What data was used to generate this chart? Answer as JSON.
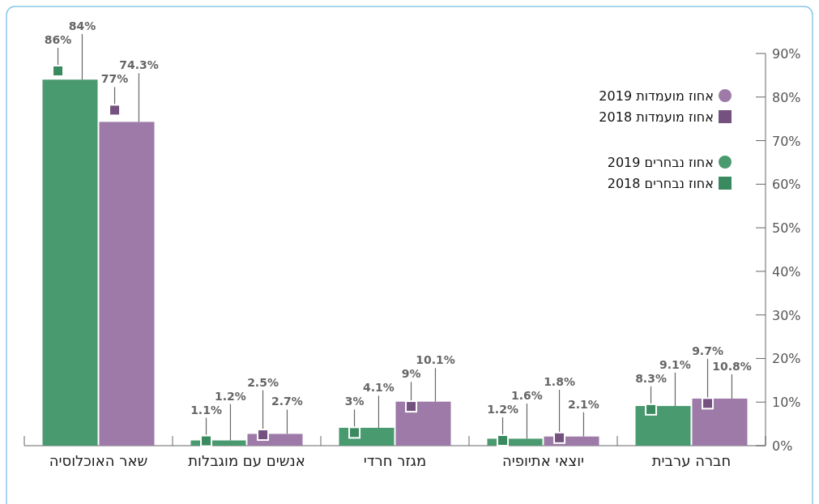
{
  "chart_data": {
    "type": "bar",
    "categories": [
      "שאר האוכלוסיה",
      "אנשים עם מוגבלות",
      "מגזר חרדי",
      "יוצאי אתיופיה",
      "חברה ערבית"
    ],
    "series": [
      {
        "name": "אחוז נבחרים 2018",
        "type": "scatter",
        "marker": "square",
        "color": "#3a8a5f",
        "values": [
          86,
          1.1,
          3,
          1.2,
          8.3
        ],
        "value_labels": [
          "86%",
          "1.1%",
          "3%",
          "1.2%",
          "8.3%"
        ]
      },
      {
        "name": "אחוז נבחרים 2019",
        "type": "bar",
        "color": "#4a9a70",
        "values": [
          84,
          1.2,
          4.1,
          1.6,
          9.1
        ],
        "value_labels": [
          "84%",
          "1.2%",
          "4.1%",
          "1.6%",
          "9.1%"
        ]
      },
      {
        "name": "אחוז מועמדות 2018",
        "type": "scatter",
        "marker": "square",
        "color": "#74517f",
        "values": [
          77,
          2.5,
          9,
          1.8,
          9.7
        ],
        "value_labels": [
          "77%",
          "2.5%",
          "9%",
          "1.8%",
          "9.7%"
        ]
      },
      {
        "name": "אחוז מועמדות 2019",
        "type": "bar",
        "color": "#9d7aa8",
        "values": [
          74.3,
          2.7,
          10.1,
          2.1,
          10.8
        ],
        "value_labels": [
          "74.3%",
          "2.7%",
          "10.1%",
          "2.1%",
          "10.8%"
        ]
      }
    ],
    "ylim": [
      0,
      90
    ],
    "yticks": [
      {
        "value": 0,
        "label": "0%"
      },
      {
        "value": 10,
        "label": "10%"
      },
      {
        "value": 20,
        "label": "20%"
      },
      {
        "value": 30,
        "label": "30%"
      },
      {
        "value": 40,
        "label": "40%"
      },
      {
        "value": 50,
        "label": "50%"
      },
      {
        "value": 60,
        "label": "60%"
      },
      {
        "value": 70,
        "label": "70%"
      },
      {
        "value": 80,
        "label": "80%"
      },
      {
        "value": 90,
        "label": "90%"
      }
    ],
    "legend": "top right",
    "grid": false
  }
}
